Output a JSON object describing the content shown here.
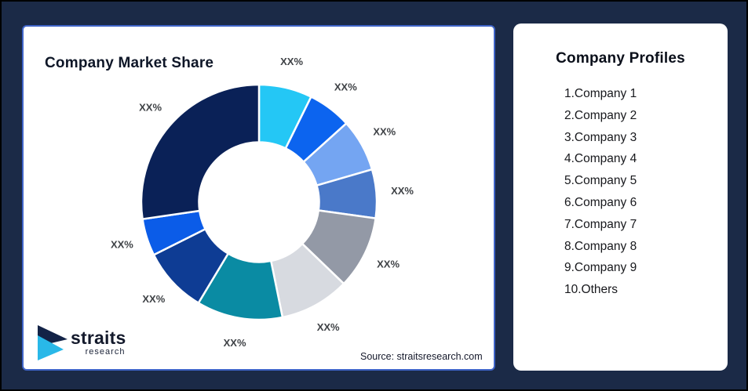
{
  "frame": {
    "background": "#1B2A47",
    "border_color": "#000000"
  },
  "left_card": {
    "title": "Company Market Share",
    "border_color": "#3F64C8",
    "source": "Source: straitsresearch.com",
    "logo": {
      "brand": "straits",
      "sub": "research",
      "navy": "#132347",
      "cyan": "#29B8E8"
    }
  },
  "right_card": {
    "title": "Company Profiles",
    "items": [
      "1.Company 1",
      "2.Company 2",
      "3.Company 3",
      "4.Company 4",
      "5.Company 5",
      "6.Company 6",
      "7.Company 7",
      "8.Company 8",
      "9.Company 9",
      "10.Others"
    ]
  },
  "chart_data": {
    "type": "pie",
    "subtype": "donut",
    "title": "Company Market Share",
    "start_angle_deg": 0,
    "direction": "clockwise",
    "inner_radius_ratio": 0.51,
    "slice_gap_color": "#FFFFFF",
    "label_color": "#3F4246",
    "segments": [
      {
        "label": "XX%",
        "value": 7.3,
        "color": "#24C7F5"
      },
      {
        "label": "XX%",
        "value": 6.0,
        "color": "#0C64EF"
      },
      {
        "label": "XX%",
        "value": 7.2,
        "color": "#74A5F2"
      },
      {
        "label": "XX%",
        "value": 6.7,
        "color": "#4A79C9"
      },
      {
        "label": "XX%",
        "value": 10.0,
        "color": "#9399A6"
      },
      {
        "label": "XX%",
        "value": 9.6,
        "color": "#D7DAE0"
      },
      {
        "label": "XX%",
        "value": 11.8,
        "color": "#0A8BA3"
      },
      {
        "label": "XX%",
        "value": 9.0,
        "color": "#0E3C94"
      },
      {
        "label": "XX%",
        "value": 5.1,
        "color": "#0B5CE8"
      },
      {
        "label": "XX%",
        "value": 27.3,
        "color": "#0A2157"
      }
    ]
  }
}
